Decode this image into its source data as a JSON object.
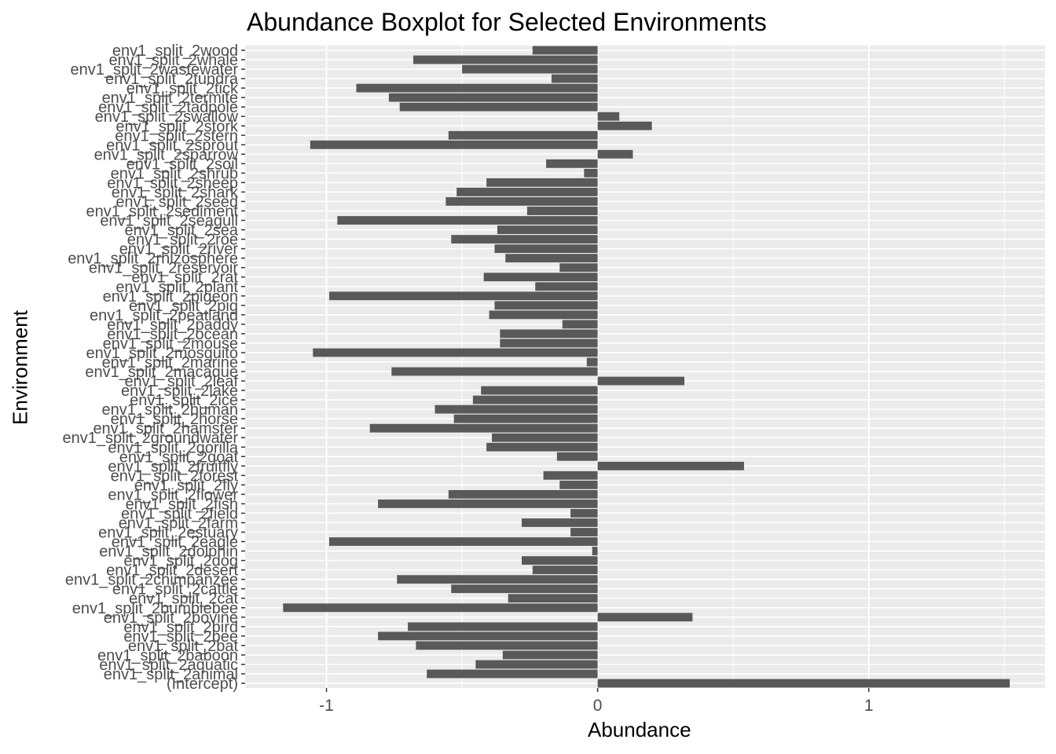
{
  "chart_data": {
    "type": "bar",
    "orientation": "horizontal",
    "title": "Abundance Boxplot for Selected Environments",
    "xlabel": "Abundance",
    "ylabel": "Environment",
    "xlim": [
      -1.3,
      1.65
    ],
    "xticks": [
      -1,
      0,
      1
    ],
    "xtick_labels": [
      "-1",
      "0",
      "1"
    ],
    "grid": true,
    "legend": "none",
    "colors": {
      "bar": "#595959",
      "panel": "#ebebeb",
      "grid": "#ffffff",
      "text": "#4d4d4d",
      "tick": "#333333"
    },
    "categories": [
      "(Intercept)",
      "env1_split_2animal",
      "env1_split_2aquatic",
      "env1_split_2baboon",
      "env1_split_2bat",
      "env1_split_2bee",
      "env1_split_2bird",
      "env1_split_2bovine",
      "env1_split_2bumblebee",
      "env1_split_2cat",
      "env1_split_2cattle",
      "env1_split_2chimpanzee",
      "env1_split_2desert",
      "env1_split_2dog",
      "env1_split_2dolphin",
      "env1_split_2eagle",
      "env1_split_2estuary",
      "env1_split_2farm",
      "env1_split_2field",
      "env1_split_2fish",
      "env1_split_2flower",
      "env1_split_2fly",
      "env1_split_2forest",
      "env1_split_2fruitfly",
      "env1_split_2goat",
      "env1_split_2gorilla",
      "env1_split_2groundwater",
      "env1_split_2hamster",
      "env1_split_2horse",
      "env1_split_2human",
      "env1_split_2ice",
      "env1_split_2lake",
      "env1_split_2leaf",
      "env1_split_2macaque",
      "env1_split_2marine",
      "env1_split_2mosquito",
      "env1_split_2mouse",
      "env1_split_2ocean",
      "env1_split_2paddy",
      "env1_split_2peatland",
      "env1_split_2pig",
      "env1_split_2pigeon",
      "env1_split_2plant",
      "env1_split_2rat",
      "env1_split_2reservoir",
      "env1_split_2rhizosphere",
      "env1_split_2river",
      "env1_split_2roe",
      "env1_split_2sea",
      "env1_split_2seagull",
      "env1_split_2sediment",
      "env1_split_2seed",
      "env1_split_2shark",
      "env1_split_2sheep",
      "env1_split_2shrub",
      "env1_split_2soil",
      "env1_split_2sparrow",
      "env1_split_2sprout",
      "env1_split_2stern",
      "env1_split_2stork",
      "env1_split_2swallow",
      "env1_split_2tadpole",
      "env1_split_2termite",
      "env1_split_2tick",
      "env1_split_2tundra",
      "env1_split_2wastewater",
      "env1_split_2whale",
      "env1_split_2wood"
    ],
    "values": [
      1.52,
      -0.63,
      -0.45,
      -0.35,
      -0.67,
      -0.81,
      -0.7,
      0.35,
      -1.16,
      -0.33,
      -0.54,
      -0.74,
      -0.24,
      -0.28,
      -0.02,
      -0.99,
      -0.1,
      -0.28,
      -0.1,
      -0.81,
      -0.55,
      -0.14,
      -0.2,
      0.54,
      -0.15,
      -0.41,
      -0.39,
      -0.84,
      -0.53,
      -0.6,
      -0.46,
      -0.43,
      0.32,
      -0.76,
      -0.04,
      -1.05,
      -0.36,
      -0.36,
      -0.13,
      -0.4,
      -0.38,
      -0.99,
      -0.23,
      -0.42,
      -0.14,
      -0.34,
      -0.38,
      -0.54,
      -0.37,
      -0.96,
      -0.26,
      -0.56,
      -0.52,
      -0.41,
      -0.05,
      -0.19,
      0.13,
      -1.06,
      -0.55,
      0.2,
      0.08,
      -0.73,
      -0.77,
      -0.89,
      -0.17,
      -0.5,
      -0.68,
      -0.24
    ]
  }
}
